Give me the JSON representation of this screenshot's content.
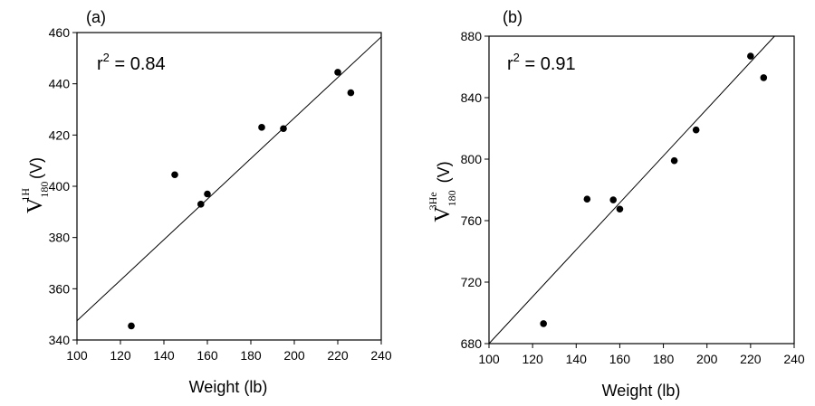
{
  "chart_data": [
    {
      "type": "scatter",
      "panel_label": "(a)",
      "annotation": {
        "prefix": "r",
        "sup": "2",
        "suffix": " = 0.84"
      },
      "xlabel": "Weight (lb)",
      "ylabel": {
        "main": "V",
        "sub": "180",
        "sup": "1H",
        "unit": "(V)"
      },
      "xlim": [
        100,
        240
      ],
      "ylim": [
        340,
        460
      ],
      "xticks": [
        100,
        120,
        140,
        160,
        180,
        200,
        220,
        240
      ],
      "yticks": [
        340,
        360,
        380,
        400,
        420,
        440,
        460
      ],
      "points": [
        {
          "x": 125,
          "y": 345.5
        },
        {
          "x": 145,
          "y": 404.5
        },
        {
          "x": 157,
          "y": 393
        },
        {
          "x": 160,
          "y": 397
        },
        {
          "x": 185,
          "y": 423
        },
        {
          "x": 195,
          "y": 422.5
        },
        {
          "x": 220,
          "y": 444.5
        },
        {
          "x": 226,
          "y": 436.5
        }
      ],
      "fit_line": {
        "x": [
          100,
          240
        ],
        "y": [
          347.5,
          458.3
        ]
      },
      "grid": false
    },
    {
      "type": "scatter",
      "panel_label": "(b)",
      "annotation": {
        "prefix": "r",
        "sup": "2",
        "suffix": " = 0.91"
      },
      "xlabel": "Weight (lb)",
      "ylabel": {
        "main": "V",
        "sub": "180",
        "sup": "3He",
        "unit": "(V)"
      },
      "xlim": [
        100,
        240
      ],
      "ylim": [
        680,
        880
      ],
      "xticks": [
        100,
        120,
        140,
        160,
        180,
        200,
        220,
        240
      ],
      "yticks": [
        680,
        720,
        760,
        800,
        840,
        880
      ],
      "points": [
        {
          "x": 125,
          "y": 693
        },
        {
          "x": 145,
          "y": 774
        },
        {
          "x": 157,
          "y": 773.5
        },
        {
          "x": 160,
          "y": 767.5
        },
        {
          "x": 185,
          "y": 799
        },
        {
          "x": 195,
          "y": 819
        },
        {
          "x": 220,
          "y": 867
        },
        {
          "x": 226,
          "y": 853
        }
      ],
      "fit_line": {
        "x": [
          100,
          231
        ],
        "y": [
          680,
          880
        ]
      },
      "grid": false
    }
  ]
}
